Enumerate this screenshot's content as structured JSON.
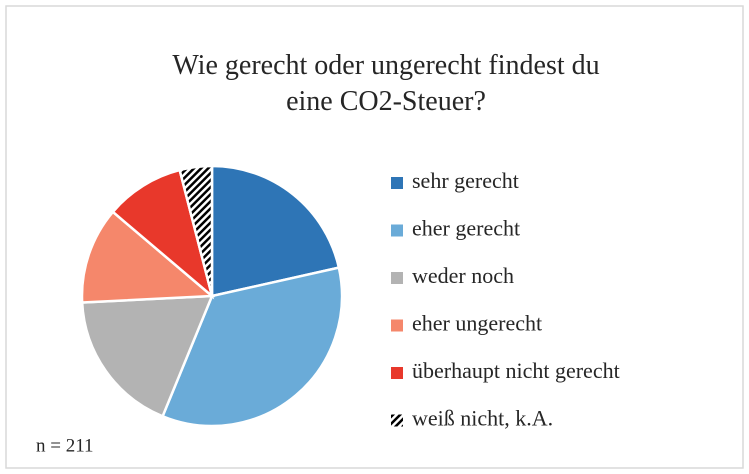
{
  "chart_data": {
    "type": "pie",
    "title": "Wie gerecht oder ungerecht findest du eine CO2-Steuer?",
    "annotation": "n = 211",
    "categories": [
      "sehr gerecht",
      "eher gerecht",
      "weder noch",
      "eher ungerecht",
      "überhaupt nicht gerecht",
      "weiß nicht, k.A."
    ],
    "values": [
      21.5,
      34.7,
      18,
      12,
      9.8,
      4
    ],
    "colors": [
      "#2e75b6",
      "#6aabd8",
      "#b3b3b3",
      "#f5876b",
      "#e8382b",
      "hatch"
    ],
    "legend": "right"
  }
}
